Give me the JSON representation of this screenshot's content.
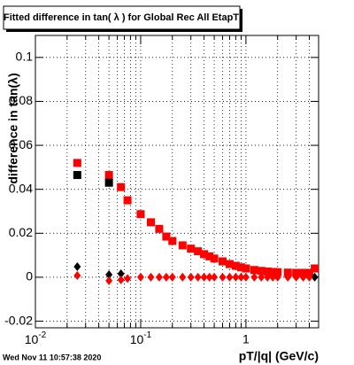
{
  "chart_data": {
    "type": "scatter",
    "title": "Fitted difference in tan( λ ) for Global Rec All EtapT",
    "x_label": "pT/|q| (GeV/c)",
    "y_label": "difference in tan(λ)",
    "date": "Wed Nov 11 10:57:38 2020",
    "log_x": true,
    "grid": true,
    "xlim": [
      0.01,
      4.9
    ],
    "ylim": [
      -0.023,
      0.11
    ],
    "xticks": [
      {
        "value": 0.01,
        "label": "10",
        "exponent": "-2"
      },
      {
        "value": 0.1,
        "label": "10",
        "exponent": "-1"
      },
      1
    ],
    "xminorticks": [
      0.02,
      0.03,
      0.04,
      0.05,
      0.06,
      0.07,
      0.08,
      0.09,
      0.2,
      0.3,
      0.4,
      0.5,
      0.6,
      0.7,
      0.8,
      0.9,
      2,
      3,
      4
    ],
    "yticks": [
      -0.02,
      0,
      0.02,
      0.04,
      0.06,
      0.08,
      0.1
    ],
    "series": [
      {
        "color": "#ff0000",
        "marker": "square",
        "x": [
          0.025,
          0.05,
          0.065,
          0.075,
          0.1,
          0.125,
          0.15,
          0.175,
          0.2,
          0.25,
          0.3,
          0.35,
          0.4,
          0.45,
          0.5,
          0.6,
          0.7,
          0.8,
          0.9,
          1.0,
          1.2,
          1.4,
          1.6,
          1.8,
          2.0,
          2.5,
          3.0,
          3.5,
          4.0,
          4.5
        ],
        "values": [
          0.052,
          0.0465,
          0.041,
          0.035,
          0.0287,
          0.025,
          0.022,
          0.0185,
          0.0165,
          0.0145,
          0.013,
          0.0118,
          0.0105,
          0.0095,
          0.0085,
          0.0072,
          0.006,
          0.0052,
          0.0045,
          0.004,
          0.0033,
          0.0029,
          0.0026,
          0.0024,
          0.0023,
          0.0021,
          0.002,
          0.002,
          0.002,
          0.004
        ]
      },
      {
        "color": "#000000",
        "marker": "square",
        "x": [
          0.025,
          0.05
        ],
        "values": [
          0.0465,
          0.043
        ]
      },
      {
        "color": "#000000",
        "marker": "diamond",
        "x": [
          0.025,
          0.05,
          0.065,
          4.5
        ],
        "values": [
          0.0048,
          0.0012,
          0.0016,
          0
        ]
      },
      {
        "color": "#ff0000",
        "marker": "diamond",
        "x": [
          0.025,
          0.05,
          0.065,
          0.075,
          0.1,
          0.125,
          0.15,
          0.175,
          0.2,
          0.25,
          0.3,
          0.35,
          0.4,
          0.45,
          0.5,
          0.6,
          0.7,
          0.8,
          0.9,
          1.0,
          1.2,
          1.4,
          1.6,
          1.8,
          2.0,
          2.5,
          3.0,
          3.5,
          4.0
        ],
        "values": [
          0.0008,
          -0.0016,
          -0.0012,
          -0.0006,
          0,
          0,
          0,
          0,
          0,
          0,
          0,
          0,
          0,
          0,
          0,
          0,
          0,
          0,
          0,
          0,
          0,
          0,
          0,
          0,
          0,
          0,
          0,
          0,
          0
        ]
      }
    ]
  }
}
